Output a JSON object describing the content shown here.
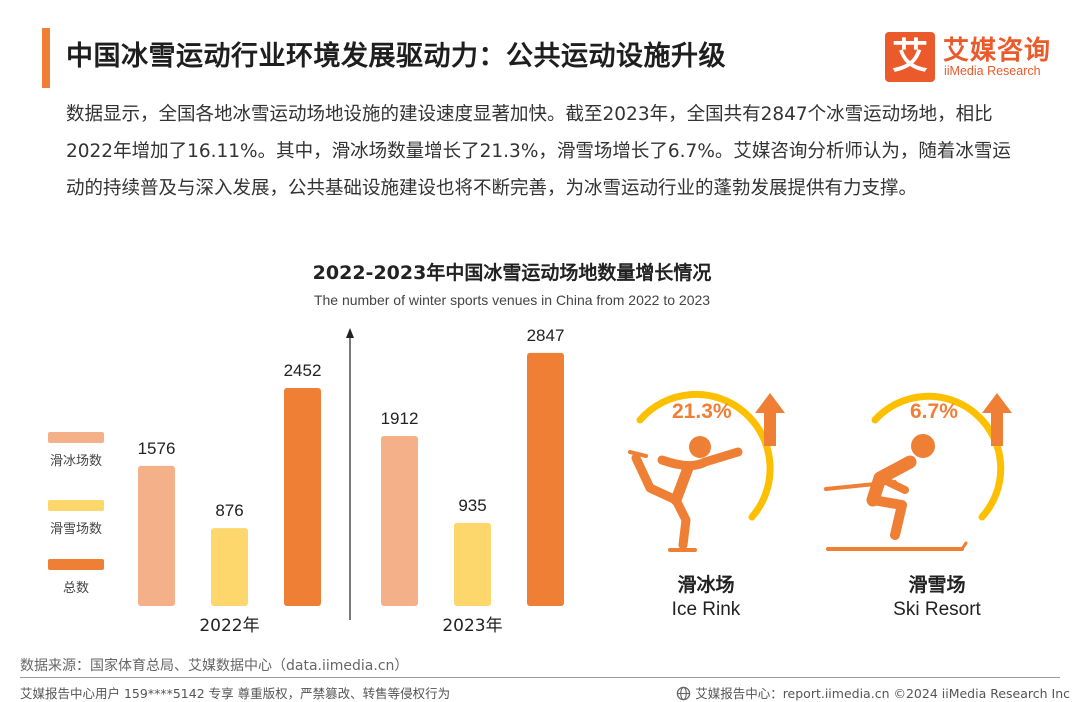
{
  "header": {
    "title": "中国冰雪运动行业环境发展驱动力：公共运动设施升级",
    "logo_mark": "艾",
    "logo_cn": "艾媒咨询",
    "logo_en": "iiMedia Research"
  },
  "description": "数据显示，全国各地冰雪运动场地设施的建设速度显著加快。截至2023年，全国共有2847个冰雪运动场地，相比2022年增加了16.11%。其中，滑冰场数量增长了21.3%，滑雪场增长了6.7%。艾媒咨询分析师认为，随着冰雪运动的持续普及与深入发展，公共基础设施建设也将不断完善，为冰雪运动行业的蓬勃发展提供有力支撑。",
  "legend": [
    {
      "label": "滑冰场数",
      "color": "#f4b088"
    },
    {
      "label": "滑雪场数",
      "color": "#fdd76b"
    },
    {
      "label": "总数",
      "color": "#ee7f35"
    }
  ],
  "chart_data": {
    "type": "bar",
    "title": "2022-2023年中国冰雪运动场地数量增长情况",
    "subtitle": "The number of winter sports venues in China from 2022 to 2023",
    "categories": [
      "2022年",
      "2023年"
    ],
    "series": [
      {
        "name": "滑冰场数",
        "values": [
          1576,
          1912
        ],
        "color": "#f4b088"
      },
      {
        "name": "滑雪场数",
        "values": [
          876,
          935
        ],
        "color": "#fdd76b"
      },
      {
        "name": "总数",
        "values": [
          2452,
          2847
        ],
        "color": "#ee7f35"
      }
    ],
    "ylim": [
      0,
      3000
    ],
    "xlabel": "",
    "ylabel": ""
  },
  "growth": [
    {
      "percent": "21.3%",
      "label_cn": "滑冰场",
      "label_en": "Ice Rink",
      "icon": "ice-skater-icon"
    },
    {
      "percent": "6.7%",
      "label_cn": "滑雪场",
      "label_en": "Ski Resort",
      "icon": "skier-icon"
    }
  ],
  "colors": {
    "accent": "#ee7f35",
    "arc": "#fcc000",
    "brand": "#ea5a2a"
  },
  "source": "数据来源：国家体育总局、艾媒数据中心（data.iimedia.cn）",
  "footer": {
    "left": "艾媒报告中心用户 159****5142 专享 尊重版权，严禁篡改、转售等侵权行为",
    "right": "艾媒报告中心：report.iimedia.cn ©2024 iiMedia Research Inc"
  }
}
